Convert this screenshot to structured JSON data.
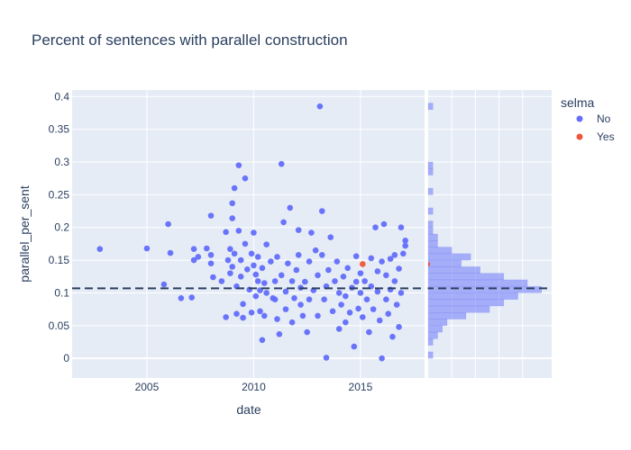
{
  "chart_data": {
    "type": "scatter",
    "title": "Percent of sentences with parallel construction",
    "xlabel": "date",
    "ylabel": "parallel_per_sent",
    "xlim": [
      2001.5,
      2018.0
    ],
    "ylim": [
      -0.03,
      0.41
    ],
    "x_ticks": [
      "2005",
      "2010",
      "2015"
    ],
    "x_tick_values": [
      2005,
      2010,
      2015
    ],
    "y_ticks": [
      "0",
      "0.05",
      "0.1",
      "0.15",
      "0.2",
      "0.25",
      "0.3",
      "0.35",
      "0.4"
    ],
    "y_tick_values": [
      0,
      0.05,
      0.1,
      0.15,
      0.2,
      0.25,
      0.3,
      0.35,
      0.4
    ],
    "reference_line": {
      "y": 0.107,
      "style": "dashed"
    },
    "grid": true,
    "legend_position": "top-right",
    "legend_title": "selma",
    "series": [
      {
        "name": "No",
        "color": "#636efa",
        "points": [
          [
            2002.8,
            0.167
          ],
          [
            2005.0,
            0.168
          ],
          [
            2005.8,
            0.113
          ],
          [
            2006.0,
            0.205
          ],
          [
            2006.1,
            0.161
          ],
          [
            2006.6,
            0.092
          ],
          [
            2007.1,
            0.093
          ],
          [
            2007.2,
            0.167
          ],
          [
            2007.2,
            0.15
          ],
          [
            2007.4,
            0.155
          ],
          [
            2007.8,
            0.168
          ],
          [
            2008.0,
            0.218
          ],
          [
            2008.0,
            0.145
          ],
          [
            2008.0,
            0.158
          ],
          [
            2008.1,
            0.124
          ],
          [
            2008.5,
            0.118
          ],
          [
            2008.7,
            0.063
          ],
          [
            2008.7,
            0.193
          ],
          [
            2008.8,
            0.15
          ],
          [
            2008.9,
            0.13
          ],
          [
            2008.9,
            0.167
          ],
          [
            2009.0,
            0.237
          ],
          [
            2009.0,
            0.214
          ],
          [
            2009.0,
            0.14
          ],
          [
            2009.1,
            0.26
          ],
          [
            2009.1,
            0.16
          ],
          [
            2009.2,
            0.11
          ],
          [
            2009.2,
            0.068
          ],
          [
            2009.3,
            0.295
          ],
          [
            2009.3,
            0.195
          ],
          [
            2009.4,
            0.15
          ],
          [
            2009.4,
            0.125
          ],
          [
            2009.5,
            0.083
          ],
          [
            2009.5,
            0.062
          ],
          [
            2009.6,
            0.275
          ],
          [
            2009.6,
            0.175
          ],
          [
            2009.7,
            0.136
          ],
          [
            2009.8,
            0.105
          ],
          [
            2009.9,
            0.07
          ],
          [
            2009.9,
            0.16
          ],
          [
            2010.0,
            0.192
          ],
          [
            2010.0,
            0.142
          ],
          [
            2010.1,
            0.128
          ],
          [
            2010.1,
            0.095
          ],
          [
            2010.2,
            0.155
          ],
          [
            2010.2,
            0.118
          ],
          [
            2010.3,
            0.104
          ],
          [
            2010.3,
            0.072
          ],
          [
            2010.4,
            0.138
          ],
          [
            2010.4,
            0.028
          ],
          [
            2010.5,
            0.065
          ],
          [
            2010.5,
            0.115
          ],
          [
            2010.6,
            0.1
          ],
          [
            2010.6,
            0.174
          ],
          [
            2010.8,
            0.148
          ],
          [
            2010.9,
            0.092
          ],
          [
            2011.0,
            0.118
          ],
          [
            2011.0,
            0.09
          ],
          [
            2011.1,
            0.155
          ],
          [
            2011.1,
            0.06
          ],
          [
            2011.2,
            0.037
          ],
          [
            2011.3,
            0.127
          ],
          [
            2011.3,
            0.297
          ],
          [
            2011.4,
            0.208
          ],
          [
            2011.5,
            0.102
          ],
          [
            2011.5,
            0.075
          ],
          [
            2011.6,
            0.145
          ],
          [
            2011.7,
            0.23
          ],
          [
            2011.8,
            0.118
          ],
          [
            2011.8,
            0.055
          ],
          [
            2011.9,
            0.092
          ],
          [
            2012.0,
            0.135
          ],
          [
            2012.1,
            0.196
          ],
          [
            2012.1,
            0.158
          ],
          [
            2012.2,
            0.082
          ],
          [
            2012.2,
            0.108
          ],
          [
            2012.3,
            0.065
          ],
          [
            2012.4,
            0.117
          ],
          [
            2012.5,
            0.04
          ],
          [
            2012.6,
            0.09
          ],
          [
            2012.6,
            0.148
          ],
          [
            2012.7,
            0.192
          ],
          [
            2012.8,
            0.104
          ],
          [
            2012.9,
            0.165
          ],
          [
            2013.0,
            0.127
          ],
          [
            2013.0,
            0.065
          ],
          [
            2013.1,
            0.385
          ],
          [
            2013.2,
            0.225
          ],
          [
            2013.2,
            0.158
          ],
          [
            2013.3,
            0.09
          ],
          [
            2013.4,
            0.11
          ],
          [
            2013.4,
            0.001
          ],
          [
            2013.5,
            0.135
          ],
          [
            2013.6,
            0.185
          ],
          [
            2013.7,
            0.072
          ],
          [
            2013.8,
            0.118
          ],
          [
            2013.9,
            0.148
          ],
          [
            2014.0,
            0.1
          ],
          [
            2014.0,
            0.045
          ],
          [
            2014.1,
            0.082
          ],
          [
            2014.2,
            0.125
          ],
          [
            2014.3,
            0.095
          ],
          [
            2014.3,
            0.055
          ],
          [
            2014.4,
            0.138
          ],
          [
            2014.5,
            0.07
          ],
          [
            2014.6,
            0.108
          ],
          [
            2014.7,
            0.018
          ],
          [
            2014.8,
            0.156
          ],
          [
            2014.8,
            0.117
          ],
          [
            2014.9,
            0.076
          ],
          [
            2015.0,
            0.1
          ],
          [
            2015.0,
            0.13
          ],
          [
            2015.1,
            0.063
          ],
          [
            2015.2,
            0.118
          ],
          [
            2015.3,
            0.09
          ],
          [
            2015.4,
            0.04
          ],
          [
            2015.5,
            0.11
          ],
          [
            2015.5,
            0.153
          ],
          [
            2015.6,
            0.075
          ],
          [
            2015.7,
            0.2
          ],
          [
            2015.8,
            0.102
          ],
          [
            2015.8,
            0.133
          ],
          [
            2015.9,
            0.058
          ],
          [
            2016.0,
            0.148
          ],
          [
            2016.0,
            0.0
          ],
          [
            2016.1,
            0.205
          ],
          [
            2016.2,
            0.09
          ],
          [
            2016.2,
            0.127
          ],
          [
            2016.3,
            0.068
          ],
          [
            2016.4,
            0.105
          ],
          [
            2016.4,
            0.152
          ],
          [
            2016.5,
            0.033
          ],
          [
            2016.6,
            0.118
          ],
          [
            2016.6,
            0.158
          ],
          [
            2016.7,
            0.082
          ],
          [
            2016.8,
            0.048
          ],
          [
            2016.8,
            0.137
          ],
          [
            2016.9,
            0.2
          ],
          [
            2016.9,
            0.1
          ],
          [
            2017.0,
            0.16
          ],
          [
            2017.1,
            0.18
          ],
          [
            2017.1,
            0.172
          ]
        ]
      },
      {
        "name": "Yes",
        "color": "#ef553b",
        "points": [
          [
            2015.1,
            0.144
          ]
        ]
      }
    ],
    "marginal_histogram": {
      "position": "right",
      "orientation": "horizontal",
      "color": "#636efa",
      "bin_width": 0.01,
      "bins": [
        [
          0.0,
          1
        ],
        [
          0.01,
          0
        ],
        [
          0.02,
          1
        ],
        [
          0.03,
          2
        ],
        [
          0.04,
          3
        ],
        [
          0.05,
          4
        ],
        [
          0.06,
          8
        ],
        [
          0.07,
          13
        ],
        [
          0.08,
          16
        ],
        [
          0.09,
          19
        ],
        [
          0.1,
          24
        ],
        [
          0.11,
          21
        ],
        [
          0.12,
          16
        ],
        [
          0.13,
          11
        ],
        [
          0.14,
          7
        ],
        [
          0.15,
          9
        ],
        [
          0.16,
          5
        ],
        [
          0.17,
          2
        ],
        [
          0.18,
          2
        ],
        [
          0.19,
          1
        ],
        [
          0.2,
          1
        ],
        [
          0.22,
          1
        ],
        [
          0.25,
          1
        ],
        [
          0.28,
          1
        ],
        [
          0.29,
          1
        ],
        [
          0.38,
          1
        ]
      ]
    }
  }
}
